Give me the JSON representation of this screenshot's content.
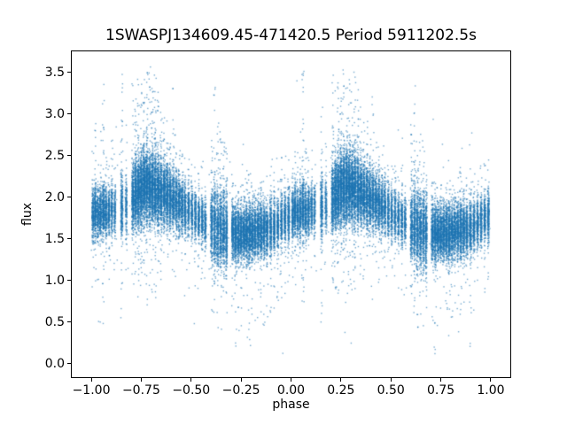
{
  "chart_data": {
    "type": "scatter",
    "title": "1SWASPJ134609.45-471420.5 Period 5911202.5s",
    "xlabel": "phase",
    "ylabel": "flux",
    "xlim": [
      -1.1,
      1.1
    ],
    "ylim": [
      -0.165,
      3.76
    ],
    "grid": false,
    "legend": "none",
    "x_ticks": [
      {
        "v": -1.0,
        "label": "−1.00"
      },
      {
        "v": -0.75,
        "label": "−0.75"
      },
      {
        "v": -0.5,
        "label": "−0.50"
      },
      {
        "v": -0.25,
        "label": "−0.25"
      },
      {
        "v": 0.0,
        "label": "0.00"
      },
      {
        "v": 0.25,
        "label": "0.25"
      },
      {
        "v": 0.5,
        "label": "0.50"
      },
      {
        "v": 0.75,
        "label": "0.75"
      },
      {
        "v": 1.0,
        "label": "1.00"
      }
    ],
    "y_ticks": [
      {
        "v": 0.0,
        "label": "0.0"
      },
      {
        "v": 0.5,
        "label": "0.5"
      },
      {
        "v": 1.0,
        "label": "1.0"
      },
      {
        "v": 1.5,
        "label": "1.5"
      },
      {
        "v": 2.0,
        "label": "2.0"
      },
      {
        "v": 2.5,
        "label": "2.5"
      },
      {
        "v": 3.0,
        "label": "3.0"
      },
      {
        "v": 3.5,
        "label": "3.5"
      }
    ],
    "marker_color": "#1f77b4",
    "marker_alpha": 0.6,
    "marker_size_px": 1.4,
    "background_color": "#ffffff",
    "description": "Phase-folded light curve scatter; each observing-night streak plotted twice, at phase p and p−1. Flux band ~1.5–2.2 with maximum near phase 0.25–0.35 and lower band ~1.55–1.65 near phase 0.6–0.9; sparse vertical outlier streaks reach flux ~3.58 above and ~0.05 below.",
    "fold_copies": [
      0,
      -1
    ],
    "seed": 1346094,
    "flux_min": 0.015,
    "flux_max": 3.58,
    "streak_fields": [
      "phase",
      "mean_flux",
      "sigma",
      "n_points",
      "half_width",
      "tail_max_flux",
      "tail_min_flux",
      "tail_fraction"
    ],
    "streaks": [
      [
        0.008,
        1.8,
        0.15,
        240,
        0.004,
        2.7,
        0.9,
        0.05
      ],
      [
        0.02,
        1.83,
        0.15,
        280,
        0.004,
        2.9,
        0.8,
        0.05
      ],
      [
        0.033,
        1.79,
        0.14,
        220,
        0.004,
        2.5,
        1.0,
        0.04
      ],
      [
        0.046,
        1.82,
        0.16,
        260,
        0.004,
        2.8,
        0.7,
        0.05
      ],
      [
        0.06,
        1.85,
        0.17,
        320,
        0.005,
        3.52,
        0.45,
        0.1
      ],
      [
        0.074,
        1.81,
        0.15,
        250,
        0.004,
        2.6,
        0.9,
        0.05
      ],
      [
        0.088,
        1.83,
        0.14,
        230,
        0.004,
        2.5,
        1.0,
        0.04
      ],
      [
        0.103,
        1.85,
        0.15,
        190,
        0.004,
        2.7,
        0.9,
        0.05
      ],
      [
        0.118,
        1.86,
        0.15,
        150,
        0.004,
        2.6,
        1.0,
        0.04
      ],
      [
        0.153,
        1.88,
        0.19,
        290,
        0.005,
        3.58,
        0.5,
        0.12
      ],
      [
        0.175,
        1.9,
        0.16,
        170,
        0.004,
        2.9,
        1.0,
        0.05
      ],
      [
        0.208,
        1.98,
        0.2,
        380,
        0.005,
        3.5,
        0.8,
        0.08
      ],
      [
        0.222,
        2.03,
        0.21,
        420,
        0.005,
        3.3,
        0.9,
        0.07
      ],
      [
        0.236,
        2.07,
        0.21,
        440,
        0.005,
        3.52,
        0.8,
        0.08
      ],
      [
        0.25,
        2.1,
        0.22,
        450,
        0.005,
        3.4,
        0.9,
        0.07
      ],
      [
        0.264,
        2.12,
        0.22,
        460,
        0.005,
        3.56,
        0.8,
        0.08
      ],
      [
        0.278,
        2.13,
        0.22,
        450,
        0.005,
        3.5,
        0.7,
        0.08
      ],
      [
        0.292,
        2.12,
        0.21,
        440,
        0.005,
        3.58,
        0.9,
        0.07
      ],
      [
        0.306,
        2.11,
        0.21,
        430,
        0.005,
        3.4,
        0.8,
        0.07
      ],
      [
        0.32,
        2.1,
        0.22,
        430,
        0.005,
        3.52,
        0.6,
        0.08
      ],
      [
        0.335,
        2.08,
        0.21,
        410,
        0.005,
        3.3,
        0.9,
        0.06
      ],
      [
        0.35,
        2.06,
        0.2,
        390,
        0.005,
        3.1,
        1.0,
        0.06
      ],
      [
        0.365,
        2.04,
        0.19,
        370,
        0.005,
        3.0,
        1.0,
        0.05
      ],
      [
        0.38,
        2.02,
        0.19,
        350,
        0.005,
        2.95,
        1.1,
        0.05
      ],
      [
        0.395,
        2.0,
        0.18,
        330,
        0.005,
        2.9,
        1.0,
        0.05
      ],
      [
        0.41,
        1.97,
        0.18,
        310,
        0.005,
        3.35,
        1.1,
        0.06
      ],
      [
        0.425,
        1.95,
        0.17,
        290,
        0.005,
        2.8,
        1.0,
        0.04
      ],
      [
        0.44,
        1.92,
        0.17,
        280,
        0.005,
        2.7,
        1.1,
        0.04
      ],
      [
        0.455,
        1.9,
        0.16,
        260,
        0.005,
        2.6,
        1.2,
        0.04
      ],
      [
        0.47,
        1.87,
        0.16,
        240,
        0.004,
        2.5,
        1.1,
        0.04
      ],
      [
        0.487,
        1.84,
        0.15,
        220,
        0.004,
        2.5,
        1.0,
        0.04
      ],
      [
        0.504,
        1.81,
        0.15,
        210,
        0.004,
        2.4,
        1.0,
        0.04
      ],
      [
        0.521,
        1.78,
        0.15,
        210,
        0.004,
        2.4,
        0.9,
        0.04
      ],
      [
        0.538,
        1.75,
        0.14,
        200,
        0.004,
        2.3,
        0.9,
        0.04
      ],
      [
        0.555,
        1.72,
        0.14,
        210,
        0.004,
        2.4,
        0.8,
        0.04
      ],
      [
        0.571,
        1.69,
        0.14,
        190,
        0.004,
        2.2,
        0.9,
        0.04
      ],
      [
        0.603,
        1.66,
        0.22,
        300,
        0.005,
        2.9,
        0.6,
        0.07
      ],
      [
        0.618,
        1.64,
        0.24,
        330,
        0.005,
        3.35,
        0.5,
        0.08
      ],
      [
        0.633,
        1.62,
        0.24,
        320,
        0.005,
        2.9,
        0.35,
        0.07
      ],
      [
        0.648,
        1.61,
        0.23,
        330,
        0.005,
        2.8,
        0.3,
        0.07
      ],
      [
        0.663,
        1.6,
        0.23,
        320,
        0.005,
        2.7,
        0.45,
        0.06
      ],
      [
        0.677,
        1.59,
        0.22,
        300,
        0.004,
        2.6,
        0.5,
        0.06
      ],
      [
        0.708,
        1.57,
        0.16,
        320,
        0.005,
        2.3,
        0.5,
        0.05
      ],
      [
        0.722,
        1.56,
        0.17,
        350,
        0.005,
        2.2,
        0.12,
        0.08
      ],
      [
        0.736,
        1.56,
        0.16,
        330,
        0.005,
        2.1,
        0.4,
        0.05
      ],
      [
        0.75,
        1.57,
        0.16,
        310,
        0.005,
        2.2,
        0.3,
        0.06
      ],
      [
        0.764,
        1.56,
        0.16,
        320,
        0.005,
        2.1,
        0.4,
        0.05
      ],
      [
        0.778,
        1.57,
        0.16,
        330,
        0.005,
        2.2,
        0.3,
        0.06
      ],
      [
        0.792,
        1.58,
        0.17,
        340,
        0.005,
        2.3,
        0.08,
        0.08
      ],
      [
        0.806,
        1.58,
        0.16,
        310,
        0.005,
        2.2,
        0.4,
        0.05
      ],
      [
        0.82,
        1.59,
        0.16,
        290,
        0.005,
        2.1,
        0.5,
        0.05
      ],
      [
        0.835,
        1.6,
        0.16,
        300,
        0.005,
        2.2,
        0.35,
        0.05
      ],
      [
        0.85,
        1.6,
        0.17,
        330,
        0.005,
        2.3,
        0.13,
        0.08
      ],
      [
        0.865,
        1.61,
        0.16,
        290,
        0.005,
        2.2,
        0.4,
        0.05
      ],
      [
        0.88,
        1.61,
        0.16,
        280,
        0.005,
        2.3,
        0.5,
        0.05
      ],
      [
        0.898,
        1.63,
        0.17,
        300,
        0.005,
        2.4,
        0.18,
        0.07
      ],
      [
        0.916,
        1.65,
        0.15,
        260,
        0.004,
        2.3,
        0.6,
        0.05
      ],
      [
        0.934,
        1.68,
        0.15,
        250,
        0.004,
        2.4,
        0.7,
        0.05
      ],
      [
        0.952,
        1.71,
        0.15,
        240,
        0.004,
        2.5,
        0.7,
        0.05
      ],
      [
        0.97,
        1.74,
        0.15,
        240,
        0.004,
        2.5,
        0.8,
        0.05
      ],
      [
        0.988,
        1.77,
        0.15,
        250,
        0.004,
        2.6,
        0.8,
        0.05
      ]
    ],
    "background_points": {
      "n": 380,
      "mean": 1.75,
      "sigma": 0.5,
      "min": 0.1,
      "max": 3.4
    }
  }
}
